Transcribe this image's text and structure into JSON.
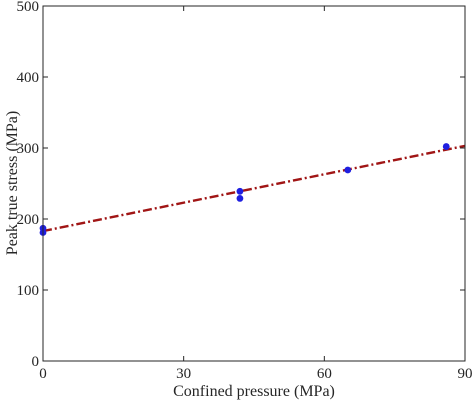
{
  "chart_data": {
    "type": "scatter",
    "title": "",
    "xlabel": "Confined pressure (MPa)",
    "ylabel": "Peak true stress (MPa)",
    "xlim": [
      0,
      90
    ],
    "ylim": [
      0,
      500
    ],
    "xticks": [
      0,
      30,
      60,
      90
    ],
    "yticks": [
      0,
      100,
      200,
      300,
      400,
      500
    ],
    "x_tick_labels": [
      "0",
      "30",
      "60",
      "90"
    ],
    "y_tick_labels": [
      "0",
      "100",
      "200",
      "300",
      "400",
      "500"
    ],
    "grid": false,
    "legend": "none",
    "series": [
      {
        "kind": "points",
        "color": "#1f1fe0",
        "points": [
          {
            "x": 0,
            "y": 181
          },
          {
            "x": 0,
            "y": 187
          },
          {
            "x": 42,
            "y": 229
          },
          {
            "x": 42,
            "y": 239
          },
          {
            "x": 65,
            "y": 269
          },
          {
            "x": 86,
            "y": 302
          }
        ]
      },
      {
        "kind": "fit-line",
        "color": "#a01515",
        "style": "dash-dot",
        "x": [
          0,
          90
        ],
        "y": [
          183,
          303
        ]
      }
    ]
  }
}
